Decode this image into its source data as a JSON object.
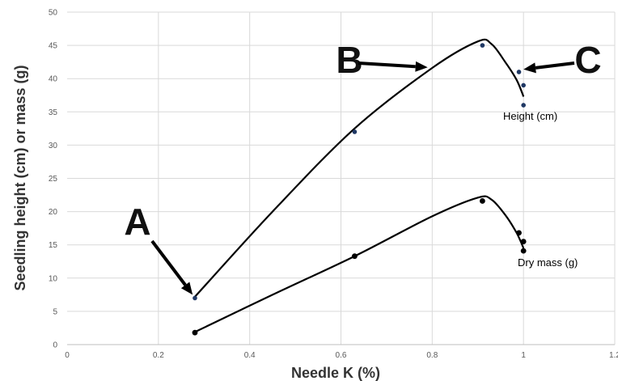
{
  "chart_data": {
    "type": "scatter",
    "title": "",
    "xlabel": "Needle K (%)",
    "ylabel": "Seedling height (cm) or mass (g)",
    "xlim": [
      0,
      1.2
    ],
    "ylim": [
      0,
      50
    ],
    "x_ticks": [
      "0",
      "0.2",
      "0.4",
      "0.6",
      "0.8",
      "1",
      "1.2"
    ],
    "y_ticks": [
      "0",
      "5",
      "10",
      "15",
      "20",
      "25",
      "30",
      "35",
      "40",
      "45",
      "50"
    ],
    "grid": true,
    "series": [
      {
        "name": "Height (cm)",
        "point_color": "#1f3864",
        "x": [
          0.28,
          0.63,
          0.91,
          0.99,
          1.0,
          1.0
        ],
        "y": [
          7.0,
          32.0,
          45.0,
          41.0,
          39.0,
          36.0
        ],
        "trend": [
          [
            0.28,
            7.2
          ],
          [
            0.45,
            20.0
          ],
          [
            0.63,
            32.5
          ],
          [
            0.8,
            41.6
          ],
          [
            0.9,
            45.6
          ],
          [
            0.93,
            45.2
          ],
          [
            0.96,
            42.5
          ],
          [
            0.985,
            39.8
          ],
          [
            1.0,
            37.3
          ]
        ]
      },
      {
        "name": "Dry mass (g)",
        "point_color": "#000000",
        "x": [
          0.28,
          0.63,
          0.91,
          0.99,
          1.0,
          1.0
        ],
        "y": [
          1.8,
          13.3,
          21.6,
          16.8,
          15.5,
          14.1
        ],
        "trend": [
          [
            0.28,
            1.9
          ],
          [
            0.45,
            7.5
          ],
          [
            0.63,
            13.3
          ],
          [
            0.8,
            19.3
          ],
          [
            0.9,
            22.1
          ],
          [
            0.93,
            21.8
          ],
          [
            0.96,
            19.5
          ],
          [
            0.985,
            16.8
          ],
          [
            1.0,
            14.5
          ]
        ]
      }
    ],
    "annotations": [
      {
        "text": "A",
        "points_to": [
          0.275,
          7.5
        ]
      },
      {
        "text": "B",
        "points_to": [
          0.79,
          41.7
        ]
      },
      {
        "text": "C",
        "points_to": [
          1.0,
          41.4
        ]
      }
    ]
  }
}
